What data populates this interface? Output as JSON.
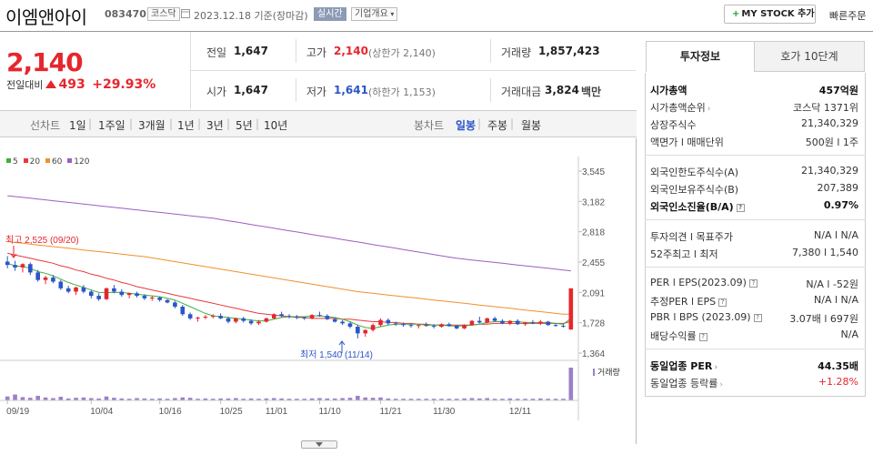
{
  "header": {
    "company_name": "이엠앤아이",
    "code": "083470",
    "market_tag": "코스닥",
    "date_text": "2023.12.18  기준(장마감)",
    "realtime_tag": "실시간",
    "company_info": "기업개요",
    "my_stock_button": "MY STOCK 추가",
    "quick_order": "빠른주문"
  },
  "summary": {
    "price": "2,140",
    "change_label": "전일대비",
    "change": "493",
    "change_pct": "+29.93%",
    "prev_close_label": "전일",
    "prev_close": "1,647",
    "open_label": "시가",
    "open": "1,647",
    "high_label": "고가",
    "high": "2,140",
    "upper_limit": "(상한가 2,140)",
    "low_label": "저가",
    "low": "1,641",
    "lower_limit": "(하한가 1,153)",
    "volume_label": "거래량",
    "volume": "1,857,423",
    "amount_label": "거래대금",
    "amount": "3,824",
    "amount_unit": "백만"
  },
  "period_bar": {
    "line_chart": "선차트",
    "periods": [
      "1일",
      "1주일",
      "3개월",
      "1년",
      "3년",
      "5년",
      "10년"
    ],
    "candle_chart": "봉차트",
    "candles": [
      "일봉",
      "주봉",
      "월봉"
    ],
    "active_candle": "일봉"
  },
  "colors": {
    "up": "#e6262d",
    "down": "#2b55c8",
    "ma5": "#3fae3f",
    "ma20": "#e8393b",
    "ma60": "#f0902d",
    "ma120": "#9a5fc2",
    "volume": "#9a80c8"
  },
  "chart_data": {
    "type": "candlestick",
    "legend": [
      "5",
      "20",
      "60",
      "120"
    ],
    "y_ticks": [
      "3,545",
      "3,182",
      "2,818",
      "2,455",
      "2,091",
      "1,728",
      "1,364"
    ],
    "ylim": [
      1364,
      3545
    ],
    "x_ticks": [
      "09/19",
      "10/04",
      "10/16",
      "10/25",
      "11/01",
      "11/10",
      "11/21",
      "11/30",
      "12/11"
    ],
    "max_annotation": "최고 2,525 (09/20)",
    "min_annotation": "최저 1,540 (11/14)",
    "volume_label": "거래량",
    "candles": [
      [
        2460,
        2525,
        2380,
        2420
      ],
      [
        2420,
        2470,
        2350,
        2390
      ],
      [
        2390,
        2440,
        2330,
        2430
      ],
      [
        2430,
        2450,
        2300,
        2330
      ],
      [
        2330,
        2360,
        2220,
        2240
      ],
      [
        2240,
        2290,
        2190,
        2270
      ],
      [
        2270,
        2300,
        2200,
        2220
      ],
      [
        2220,
        2240,
        2120,
        2140
      ],
      [
        2140,
        2170,
        2080,
        2100
      ],
      [
        2100,
        2160,
        2060,
        2150
      ],
      [
        2150,
        2180,
        2080,
        2100
      ],
      [
        2100,
        2120,
        2020,
        2050
      ],
      [
        2050,
        2080,
        1990,
        2010
      ],
      [
        2010,
        2150,
        2000,
        2140
      ],
      [
        2140,
        2180,
        2080,
        2100
      ],
      [
        2100,
        2130,
        2040,
        2060
      ],
      [
        2060,
        2090,
        2020,
        2080
      ],
      [
        2080,
        2100,
        2030,
        2050
      ],
      [
        2050,
        2070,
        2000,
        2020
      ],
      [
        2020,
        2050,
        1990,
        2030
      ],
      [
        2030,
        2040,
        1980,
        2000
      ],
      [
        2000,
        2010,
        1960,
        1970
      ],
      [
        1970,
        1990,
        1900,
        1920
      ],
      [
        1920,
        1940,
        1810,
        1830
      ],
      [
        1830,
        1850,
        1760,
        1780
      ],
      [
        1780,
        1800,
        1740,
        1790
      ],
      [
        1790,
        1820,
        1770,
        1800
      ],
      [
        1800,
        1830,
        1780,
        1810
      ],
      [
        1810,
        1840,
        1770,
        1780
      ],
      [
        1780,
        1800,
        1720,
        1740
      ],
      [
        1740,
        1790,
        1720,
        1780
      ],
      [
        1780,
        1800,
        1730,
        1750
      ],
      [
        1750,
        1770,
        1700,
        1720
      ],
      [
        1720,
        1760,
        1700,
        1740
      ],
      [
        1740,
        1790,
        1730,
        1780
      ],
      [
        1780,
        1840,
        1770,
        1830
      ],
      [
        1830,
        1860,
        1790,
        1810
      ],
      [
        1810,
        1830,
        1780,
        1800
      ],
      [
        1800,
        1820,
        1770,
        1790
      ],
      [
        1790,
        1800,
        1760,
        1780
      ],
      [
        1780,
        1830,
        1770,
        1820
      ],
      [
        1820,
        1860,
        1800,
        1810
      ],
      [
        1810,
        1830,
        1760,
        1770
      ],
      [
        1770,
        1790,
        1730,
        1740
      ],
      [
        1740,
        1760,
        1700,
        1720
      ],
      [
        1720,
        1740,
        1660,
        1680
      ],
      [
        1680,
        1700,
        1540,
        1600
      ],
      [
        1600,
        1650,
        1560,
        1640
      ],
      [
        1640,
        1720,
        1620,
        1700
      ],
      [
        1700,
        1780,
        1680,
        1760
      ],
      [
        1760,
        1780,
        1700,
        1720
      ],
      [
        1720,
        1740,
        1690,
        1710
      ],
      [
        1710,
        1730,
        1680,
        1700
      ],
      [
        1700,
        1720,
        1670,
        1690
      ],
      [
        1690,
        1710,
        1660,
        1700
      ],
      [
        1700,
        1730,
        1680,
        1690
      ],
      [
        1690,
        1710,
        1660,
        1680
      ],
      [
        1680,
        1720,
        1670,
        1710
      ],
      [
        1710,
        1730,
        1680,
        1690
      ],
      [
        1690,
        1700,
        1650,
        1660
      ],
      [
        1660,
        1710,
        1650,
        1700
      ],
      [
        1700,
        1760,
        1690,
        1750
      ],
      [
        1750,
        1800,
        1720,
        1730
      ],
      [
        1730,
        1790,
        1720,
        1780
      ],
      [
        1780,
        1800,
        1740,
        1750
      ],
      [
        1750,
        1770,
        1710,
        1720
      ],
      [
        1720,
        1760,
        1700,
        1750
      ],
      [
        1750,
        1770,
        1700,
        1710
      ],
      [
        1710,
        1740,
        1690,
        1730
      ],
      [
        1730,
        1760,
        1710,
        1720
      ],
      [
        1720,
        1760,
        1700,
        1740
      ],
      [
        1740,
        1750,
        1690,
        1700
      ],
      [
        1700,
        1720,
        1680,
        1690
      ],
      [
        1690,
        1710,
        1670,
        1680
      ],
      [
        1647,
        2140,
        1641,
        2140
      ]
    ],
    "ma5": [
      2440,
      2410,
      2400,
      2380,
      2340,
      2320,
      2290,
      2250,
      2210,
      2180,
      2150,
      2120,
      2090,
      2090,
      2090,
      2090,
      2080,
      2070,
      2060,
      2050,
      2040,
      2020,
      2000,
      1960,
      1920,
      1880,
      1840,
      1810,
      1800,
      1790,
      1780,
      1770,
      1760,
      1750,
      1750,
      1770,
      1790,
      1800,
      1800,
      1800,
      1810,
      1810,
      1800,
      1790,
      1770,
      1740,
      1700,
      1670,
      1660,
      1680,
      1700,
      1710,
      1710,
      1710,
      1710,
      1700,
      1700,
      1700,
      1690,
      1690,
      1690,
      1700,
      1710,
      1730,
      1740,
      1740,
      1740,
      1740,
      1730,
      1730,
      1730,
      1730,
      1720,
      1710,
      1780
    ],
    "ma20": [
      2560,
      2540,
      2520,
      2500,
      2480,
      2460,
      2440,
      2410,
      2390,
      2360,
      2340,
      2310,
      2290,
      2260,
      2240,
      2210,
      2190,
      2160,
      2140,
      2120,
      2100,
      2080,
      2060,
      2040,
      2020,
      2000,
      1980,
      1960,
      1940,
      1920,
      1900,
      1880,
      1860,
      1840,
      1830,
      1820,
      1810,
      1800,
      1790,
      1790,
      1780,
      1780,
      1780,
      1780,
      1770,
      1770,
      1760,
      1750,
      1740,
      1740,
      1730,
      1730,
      1720,
      1720,
      1710,
      1710,
      1700,
      1700,
      1700,
      1700,
      1700,
      1700,
      1710,
      1710,
      1720,
      1720,
      1720,
      1720,
      1720,
      1720,
      1720,
      1720,
      1720,
      1720,
      1740
    ],
    "ma60": [
      2700,
      2690,
      2680,
      2670,
      2660,
      2650,
      2640,
      2630,
      2620,
      2610,
      2600,
      2590,
      2580,
      2570,
      2560,
      2550,
      2540,
      2530,
      2520,
      2505,
      2490,
      2475,
      2460,
      2445,
      2430,
      2415,
      2400,
      2385,
      2370,
      2355,
      2340,
      2325,
      2310,
      2295,
      2280,
      2265,
      2250,
      2235,
      2220,
      2205,
      2190,
      2175,
      2160,
      2145,
      2130,
      2115,
      2100,
      2090,
      2080,
      2070,
      2060,
      2050,
      2040,
      2030,
      2020,
      2010,
      2000,
      1990,
      1980,
      1970,
      1960,
      1950,
      1940,
      1930,
      1920,
      1910,
      1900,
      1890,
      1880,
      1870,
      1860,
      1850,
      1840,
      1830,
      1830
    ],
    "ma120": [
      3250,
      3240,
      3230,
      3220,
      3210,
      3200,
      3190,
      3180,
      3170,
      3160,
      3150,
      3140,
      3130,
      3120,
      3110,
      3100,
      3090,
      3080,
      3070,
      3060,
      3050,
      3040,
      3030,
      3020,
      3010,
      3000,
      2990,
      2980,
      2965,
      2950,
      2935,
      2920,
      2905,
      2890,
      2875,
      2860,
      2845,
      2830,
      2815,
      2800,
      2785,
      2770,
      2755,
      2740,
      2725,
      2710,
      2695,
      2680,
      2665,
      2650,
      2635,
      2620,
      2605,
      2590,
      2575,
      2560,
      2545,
      2530,
      2515,
      2500,
      2490,
      2480,
      2470,
      2460,
      2450,
      2440,
      2430,
      2420,
      2410,
      2400,
      2390,
      2380,
      2370,
      2360,
      2350
    ],
    "volume": [
      12,
      18,
      10,
      8,
      14,
      9,
      7,
      11,
      6,
      8,
      9,
      7,
      6,
      12,
      8,
      6,
      5,
      7,
      6,
      5,
      6,
      5,
      7,
      9,
      8,
      5,
      6,
      5,
      6,
      6,
      7,
      5,
      6,
      5,
      6,
      7,
      6,
      5,
      5,
      5,
      6,
      7,
      6,
      6,
      7,
      8,
      14,
      9,
      8,
      9,
      6,
      5,
      5,
      5,
      5,
      5,
      5,
      5,
      5,
      5,
      6,
      7,
      6,
      7,
      5,
      5,
      6,
      5,
      5,
      5,
      6,
      5,
      5,
      5,
      100
    ]
  },
  "right_panel": {
    "tab_invest": "투자정보",
    "tab_order": "호가 10단계",
    "rows": {
      "mktcap_label": "시가총액",
      "mktcap": "457억원",
      "mktcap_rank_label": "시가총액순위",
      "mktcap_rank": "코스닥  1371위",
      "shares_label": "상장주식수",
      "shares": "21,340,329",
      "face_label": "액면가 l 매매단위",
      "face": "500원  l  1주",
      "foreign_limit_label": "외국인한도주식수(A)",
      "foreign_limit": "21,340,329",
      "foreign_hold_label": "외국인보유주식수(B)",
      "foreign_hold": "207,389",
      "foreign_ratio_label": "외국인소진율(B/A)",
      "foreign_ratio": "0.97%",
      "opinion_label": "투자의견 l 목표주가",
      "opinion": "N/A  l  N/A",
      "w52_label": "52주최고 l 최저",
      "w52": "7,380  l  1,540",
      "per_label": "PER l EPS(2023.09)",
      "per": "N/A  l  -52원",
      "est_per_label": "추정PER l EPS",
      "est_per": "N/A  l  N/A",
      "pbr_label": "PBR l BPS (2023.09)",
      "pbr": "3.07배  l  697원",
      "div_label": "배당수익률",
      "div": "N/A",
      "ind_per_label": "동일업종 PER",
      "ind_per": "44.35배",
      "ind_rate_label": "동일업종 등락률",
      "ind_rate": "+1.28%"
    }
  }
}
